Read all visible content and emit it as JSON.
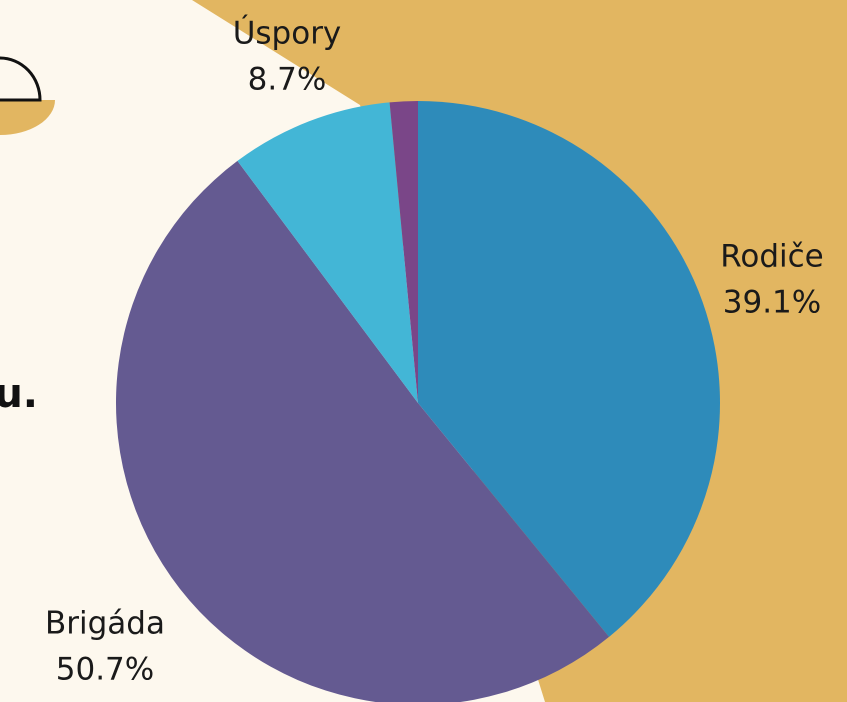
{
  "chart_data": {
    "type": "pie",
    "categories": [
      "Rodiče",
      "Brigáda",
      "Úspory",
      null
    ],
    "values": [
      39.1,
      50.7,
      8.7,
      1.5
    ],
    "value_labels": [
      "39.1%",
      "50.7%",
      "8.7%",
      null
    ],
    "colors": [
      "#2e8bba",
      "#645a91",
      "#43b6d6",
      "#7a4688"
    ],
    "start_angle": 0,
    "direction": "clockwise",
    "annotations": [
      "u."
    ]
  }
}
